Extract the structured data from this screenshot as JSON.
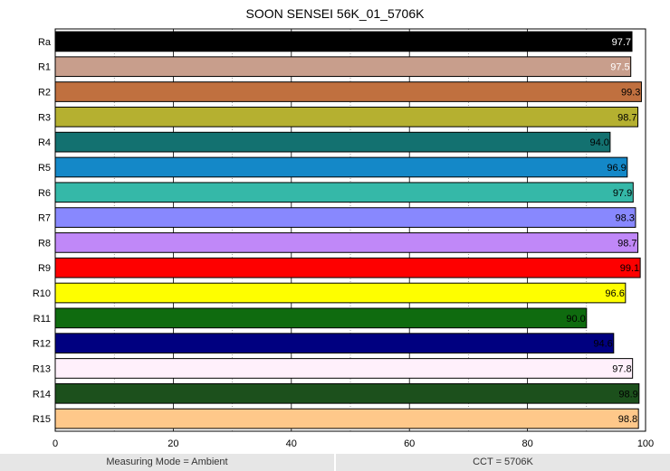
{
  "chart_data": {
    "type": "bar",
    "orientation": "horizontal",
    "title": "SOON SENSEI 56K_01_5706K",
    "xlabel": "",
    "ylabel": "",
    "xlim": [
      0,
      100
    ],
    "x_ticks": [
      0,
      20,
      40,
      60,
      80,
      100
    ],
    "grid": "vertical",
    "categories": [
      "Ra",
      "R1",
      "R2",
      "R3",
      "R4",
      "R5",
      "R6",
      "R7",
      "R8",
      "R9",
      "R10",
      "R11",
      "R12",
      "R13",
      "R14",
      "R15"
    ],
    "values": [
      97.7,
      97.5,
      99.3,
      98.7,
      94.0,
      96.9,
      97.9,
      98.3,
      98.7,
      99.1,
      96.6,
      90.0,
      94.6,
      97.8,
      98.9,
      98.8
    ],
    "value_labels": [
      "97.7",
      "97.5",
      "99.3",
      "98.7",
      "94.0",
      "96.9",
      "97.9",
      "98.3",
      "98.7",
      "99.1",
      "96.6",
      "90.0",
      "94.6",
      "97.8",
      "98.9",
      "98.8"
    ],
    "colors": [
      "#000000",
      "#c89e8c",
      "#c0703f",
      "#b5b030",
      "#137170",
      "#1488c8",
      "#35b8a8",
      "#8888fe",
      "#c088f8",
      "#fe0000",
      "#fefe00",
      "#0f6b0f",
      "#000080",
      "#fff0fb",
      "#1c501c",
      "#fec88a"
    ],
    "label_colors": [
      "#ffffff",
      "#ffffff",
      "#000000",
      "#000000",
      "#000000",
      "#000000",
      "#000000",
      "#000000",
      "#000000",
      "#000000",
      "#000000",
      "#000000",
      "#000000",
      "#000000",
      "#000000",
      "#000000"
    ]
  },
  "footer": {
    "left": "Measuring Mode = Ambient",
    "right": "CCT = 5706K"
  }
}
